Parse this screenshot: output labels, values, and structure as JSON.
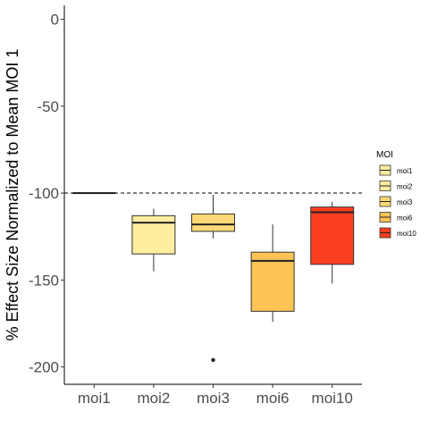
{
  "chart_data": {
    "type": "boxplot",
    "title": "",
    "xlabel": "",
    "ylabel": "% Effect Size Normalized to Mean MOI 1",
    "ylim": [
      -210,
      8
    ],
    "yticks": [
      0,
      -50,
      -100,
      -150,
      -200
    ],
    "ytick_labels": [
      "0",
      "-50",
      "-100",
      "-150",
      "-200"
    ],
    "reference_line": {
      "y": -100,
      "style": "dashed"
    },
    "categories": [
      "moi1",
      "moi2",
      "moi3",
      "moi6",
      "moi10"
    ],
    "boxes": [
      {
        "category": "moi1",
        "fill": "#FFEDA0",
        "whisker_low": -100,
        "q1": -100,
        "median": -100,
        "q3": -100,
        "whisker_high": -100,
        "outliers": []
      },
      {
        "category": "moi2",
        "fill": "#FFEDA0",
        "whisker_low": -145,
        "q1": -135,
        "median": -117,
        "q3": -113,
        "whisker_high": -109,
        "outliers": []
      },
      {
        "category": "moi3",
        "fill": "#FED976",
        "whisker_low": -126,
        "q1": -122,
        "median": -118,
        "q3": -112,
        "whisker_high": -101,
        "outliers": [
          -196
        ]
      },
      {
        "category": "moi6",
        "fill": "#FEC455",
        "whisker_low": -174,
        "q1": -168,
        "median": -139,
        "q3": -134,
        "whisker_high": -118,
        "outliers": []
      },
      {
        "category": "moi10",
        "fill": "#FC3E20",
        "whisker_low": -152,
        "q1": -141,
        "median": -111,
        "q3": -108,
        "whisker_high": -105,
        "outliers": []
      }
    ],
    "legend": {
      "title": "MOI",
      "placement": "right",
      "entries": [
        {
          "label": "moi1",
          "color": "#FFEDA0"
        },
        {
          "label": "moi2",
          "color": "#FFEDA0"
        },
        {
          "label": "moi3",
          "color": "#FED976"
        },
        {
          "label": "moi6",
          "color": "#FEC455"
        },
        {
          "label": "moi10",
          "color": "#FC3E20"
        }
      ]
    },
    "grid": false
  }
}
